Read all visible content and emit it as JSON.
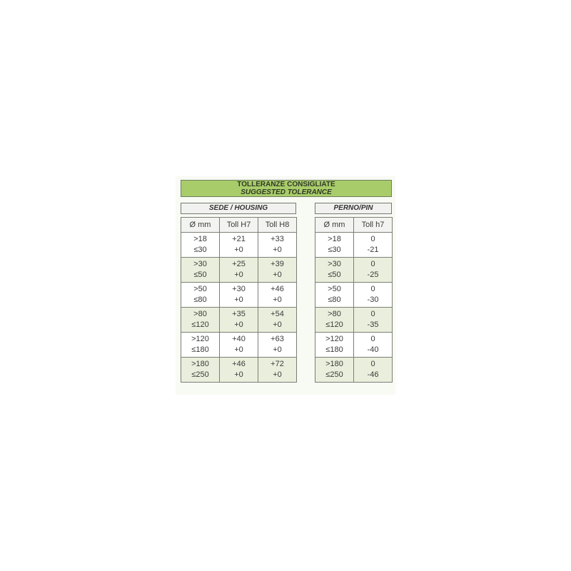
{
  "title": {
    "line1": "TOLLERANZE CONSIGLIATE",
    "line2": "SUGGESTED TOLERANCE"
  },
  "housing": {
    "label": "SEDE / HOUSING",
    "headers": [
      "Ø mm",
      "Toll H7",
      "Toll H8"
    ],
    "rows": [
      [
        ">18\n≤30",
        "+21\n+0",
        "+33\n+0"
      ],
      [
        ">30\n≤50",
        "+25\n+0",
        "+39\n+0"
      ],
      [
        ">50\n≤80",
        "+30\n+0",
        "+46\n+0"
      ],
      [
        ">80\n≤120",
        "+35\n+0",
        "+54\n+0"
      ],
      [
        ">120\n≤180",
        "+40\n+0",
        "+63\n+0"
      ],
      [
        ">180\n≤250",
        "+46\n+0",
        "+72\n+0"
      ]
    ]
  },
  "pin": {
    "label": "PERNO/PIN",
    "headers": [
      "Ø mm",
      "Toll h7"
    ],
    "rows": [
      [
        ">18\n≤30",
        "0\n-21"
      ],
      [
        ">30\n≤50",
        "0\n-25"
      ],
      [
        ">50\n≤80",
        "0\n-30"
      ],
      [
        ">80\n≤120",
        "0\n-35"
      ],
      [
        ">120\n≤180",
        "0\n-40"
      ],
      [
        ">180\n≤250",
        "0\n-46"
      ]
    ]
  },
  "colors": {
    "header_green": "#a9cc6a",
    "alt_row": "#e9efdc"
  }
}
